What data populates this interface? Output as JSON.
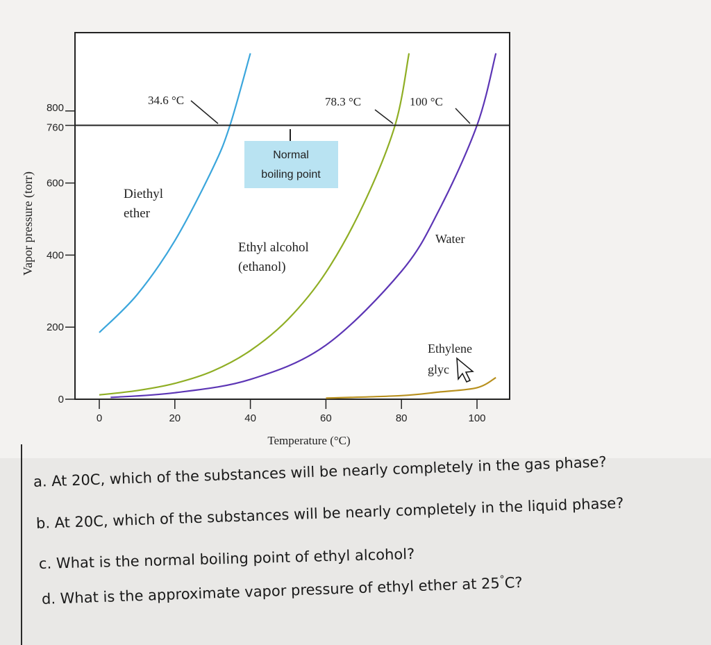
{
  "chart_data": {
    "type": "line",
    "xlabel": "Temperature (°C)",
    "ylabel": "Vapor pressure (torr)",
    "xlim": [
      0,
      105
    ],
    "ylim": [
      0,
      960
    ],
    "x_ticks": [
      "0",
      "20",
      "40",
      "60",
      "80",
      "100"
    ],
    "y_ticks": [
      "0",
      "200",
      "400",
      "600",
      "760",
      "800"
    ],
    "reference_line": {
      "y": 760
    },
    "grid": false,
    "series": [
      {
        "name": "Diethyl ether",
        "color": "#3ba6dc",
        "x": [
          0,
          10,
          20,
          30,
          34.6,
          40
        ],
        "y": [
          185,
          290,
          440,
          640,
          760,
          960
        ]
      },
      {
        "name": "Ethyl alcohol (ethanol)",
        "color": "#8fae24",
        "x": [
          0,
          10,
          20,
          30,
          40,
          50,
          60,
          70,
          78.3,
          82
        ],
        "y": [
          12,
          24,
          44,
          78,
          135,
          222,
          352,
          542,
          760,
          960
        ]
      },
      {
        "name": "Water",
        "color": "#5c35b5",
        "x": [
          3,
          20,
          40,
          60,
          80,
          90,
          100,
          105
        ],
        "y": [
          5,
          18,
          55,
          150,
          355,
          526,
          760,
          960
        ]
      },
      {
        "name": "Ethylene glycol",
        "color": "#b8901e",
        "x": [
          60,
          80,
          90,
          100,
          105
        ],
        "y": [
          3,
          10,
          20,
          32,
          60
        ]
      }
    ],
    "annotations": {
      "ether_bp": "34.6 °C",
      "ethanol_bp": "78.3 °C",
      "water_bp": "100 °C",
      "normal_boiling_point": [
        "Normal",
        "boiling point"
      ],
      "diethyl_ether": [
        "Diethyl",
        "ether"
      ],
      "ethyl_alcohol": [
        "Ethyl alcohol",
        "(ethanol)"
      ],
      "water": "Water",
      "ethylene_glycol": [
        "Ethylene",
        "glyc"
      ]
    }
  },
  "questions": {
    "a": "a. At 20C, which of the substances will be nearly completely in the gas phase?",
    "b": "b.  At 20C, which of the substances will be nearly completely in the liquid phase?",
    "c": "c. What is the normal boiling point of ethyl alcohol?",
    "d_prefix": "d.  What is the approximate vapor pressure of ethyl ether at 25",
    "d_degree": "°",
    "d_suffix": "C?"
  }
}
